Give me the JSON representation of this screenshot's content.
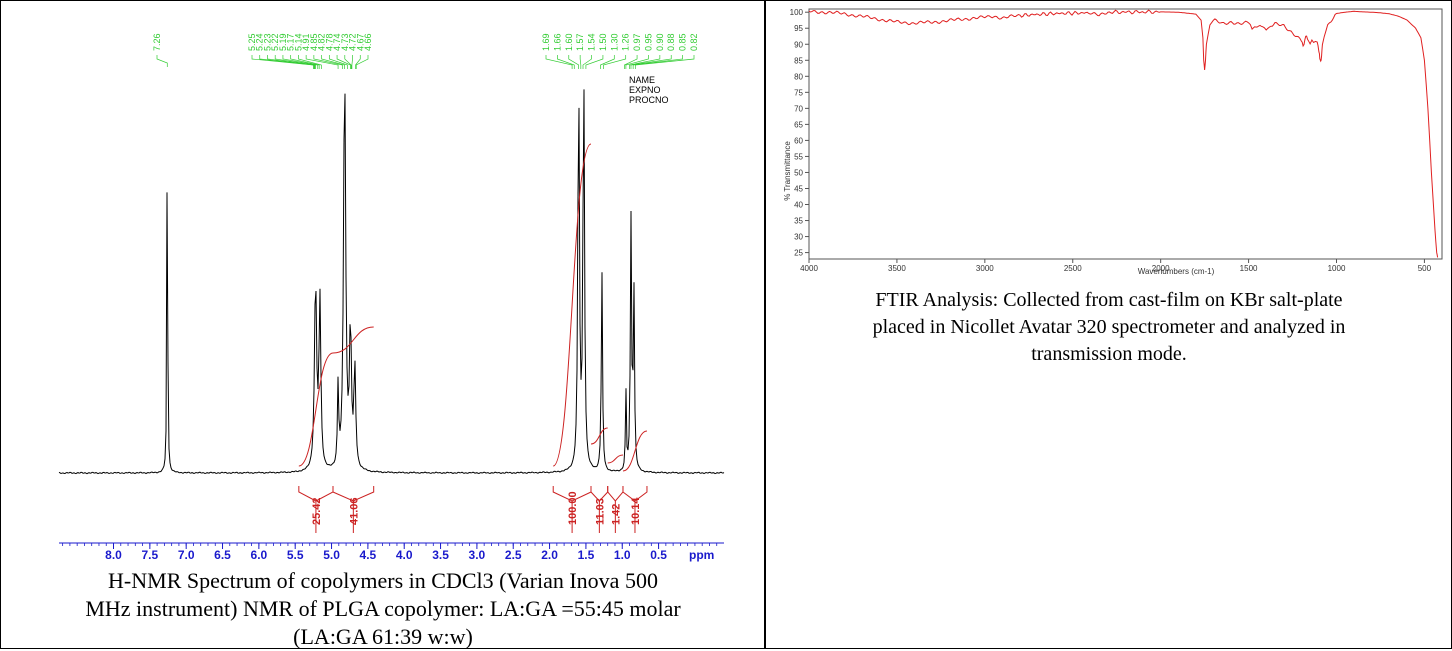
{
  "chart_data": [
    {
      "type": "line",
      "chart": "nmr",
      "xunit": "ppm",
      "xlim": [
        8.75,
        -0.4
      ],
      "ticks": [
        "8.0",
        "7.5",
        "7.0",
        "6.5",
        "6.0",
        "5.5",
        "5.0",
        "4.5",
        "4.0",
        "3.5",
        "3.0",
        "2.5",
        "2.0",
        "1.5",
        "1.0",
        "0.5"
      ],
      "tick_values": [
        8.0,
        7.5,
        7.0,
        6.5,
        6.0,
        5.5,
        5.0,
        4.5,
        4.0,
        3.5,
        3.0,
        2.5,
        2.0,
        1.5,
        1.0,
        0.5
      ],
      "peak_group_1": [
        "7.26"
      ],
      "peak_group_2": [
        "5.25",
        "5.24",
        "5.23",
        "5.22",
        "5.19",
        "5.17",
        "5.14",
        "4.91",
        "4.85",
        "4.82",
        "4.78",
        "4.74",
        "4.73",
        "4.72",
        "4.67",
        "4.66"
      ],
      "peak_group_3": [
        "1.69",
        "1.66",
        "1.60",
        "1.57",
        "1.54",
        "1.50",
        "1.30",
        "1.26",
        "0.97",
        "0.95",
        "0.90",
        "0.88",
        "0.85",
        "0.82"
      ],
      "info_labels": [
        "NAME",
        "EXPNO",
        "PROCNO"
      ],
      "integrals": [
        {
          "label": "25.42",
          "from": 5.45,
          "to": 4.98
        },
        {
          "label": "41.06",
          "from": 4.98,
          "to": 4.42
        },
        {
          "label": "100.00",
          "from": 1.95,
          "to": 1.43
        },
        {
          "label": "11.03",
          "from": 1.43,
          "to": 1.2
        },
        {
          "label": "1.42",
          "from": 1.2,
          "to": 0.99
        },
        {
          "label": "10.14",
          "from": 0.99,
          "to": 0.66
        }
      ],
      "peaks": [
        {
          "ppm": 7.26,
          "height": 1.0,
          "width": 0.012
        },
        {
          "ppm": 5.22,
          "height": 0.47,
          "width": 0.035
        },
        {
          "ppm": 5.16,
          "height": 0.42,
          "width": 0.03
        },
        {
          "ppm": 4.91,
          "height": 0.2,
          "width": 0.02
        },
        {
          "ppm": 4.82,
          "height": 1.0,
          "width": 0.035
        },
        {
          "ppm": 4.74,
          "height": 0.35,
          "width": 0.03
        },
        {
          "ppm": 4.68,
          "height": 0.25,
          "width": 0.03
        },
        {
          "ppm": 1.6,
          "height": 1.0,
          "width": 0.025
        },
        {
          "ppm": 1.53,
          "height": 1.0,
          "width": 0.025
        },
        {
          "ppm": 1.28,
          "height": 0.5,
          "width": 0.02
        },
        {
          "ppm": 0.95,
          "height": 0.2,
          "width": 0.015
        },
        {
          "ppm": 0.88,
          "height": 0.62,
          "width": 0.02
        },
        {
          "ppm": 0.84,
          "height": 0.45,
          "width": 0.02
        }
      ],
      "colors": {
        "spectrum": "#000000",
        "labels": "#33cc33",
        "integrals": "#cc2222",
        "axis": "#1a1acc"
      }
    },
    {
      "type": "line",
      "chart": "ftir",
      "xlabel": "Wavenumbers (cm-1)",
      "ylabel": "% Transmittance",
      "xlim": [
        4000,
        400
      ],
      "ylim": [
        23,
        101
      ],
      "xticks": [
        "4000",
        "3500",
        "3000",
        "2500",
        "2000",
        "1500",
        "1000",
        "500"
      ],
      "xtick_values": [
        4000,
        3500,
        3000,
        2500,
        2000,
        1500,
        1000,
        500
      ],
      "yticks": [
        "25",
        "30",
        "35",
        "40",
        "45",
        "50",
        "55",
        "60",
        "65",
        "70",
        "75",
        "80",
        "85",
        "90",
        "95",
        "100"
      ],
      "ytick_values": [
        25,
        30,
        35,
        40,
        45,
        50,
        55,
        60,
        65,
        70,
        75,
        80,
        85,
        90,
        95,
        100
      ],
      "x": [
        4000,
        3900,
        3800,
        3700,
        3600,
        3500,
        3400,
        3300,
        3200,
        3100,
        3000,
        2950,
        2900,
        2800,
        2600,
        2400,
        2350,
        2300,
        2000,
        1900,
        1800,
        1770,
        1760,
        1755,
        1750,
        1745,
        1740,
        1720,
        1700,
        1650,
        1600,
        1550,
        1500,
        1480,
        1450,
        1420,
        1400,
        1380,
        1350,
        1300,
        1250,
        1200,
        1190,
        1180,
        1170,
        1160,
        1150,
        1130,
        1110,
        1100,
        1095,
        1090,
        1085,
        1080,
        1060,
        1040,
        1000,
        950,
        900,
        850,
        800,
        750,
        700,
        650,
        600,
        550,
        520,
        500,
        480,
        460,
        440,
        430,
        425
      ],
      "y": [
        100.2,
        100.0,
        99.5,
        98.7,
        97.8,
        96.9,
        96.6,
        96.9,
        97.4,
        98.0,
        98.4,
        98.8,
        98.2,
        99.0,
        99.6,
        99.8,
        98.9,
        100.0,
        100.1,
        100.0,
        99.4,
        97.5,
        92.0,
        85.0,
        82.0,
        85.0,
        90.0,
        96.0,
        97.5,
        96.5,
        97.0,
        96.2,
        96.8,
        95.0,
        96.0,
        95.5,
        94.5,
        95.5,
        96.3,
        96.0,
        93.5,
        91.0,
        89.5,
        91.5,
        92.5,
        91.0,
        90.5,
        91.0,
        90.5,
        88.0,
        86.0,
        84.5,
        86.0,
        90.0,
        94.5,
        97.0,
        99.6,
        100.0,
        100.3,
        100.1,
        100.0,
        99.8,
        99.5,
        98.8,
        97.6,
        95.0,
        92.0,
        85.0,
        70.0,
        50.0,
        32.0,
        25.0,
        23.5
      ],
      "colors": {
        "spectrum": "#e02020",
        "axis": "#555555"
      }
    }
  ],
  "captions": {
    "nmr_line1": "H-NMR Spectrum of copolymers in CDCl3 (Varian Inova 500",
    "nmr_line2": "MHz instrument) NMR of PLGA copolymer: LA:GA =55:45 molar",
    "nmr_line3": "(LA:GA 61:39 w:w)",
    "ftir_line1": "FTIR Analysis: Collected from cast-film on KBr salt-plate",
    "ftir_line2": "placed in Nicollet Avatar 320 spectrometer and analyzed in",
    "ftir_line3": "transmission mode."
  }
}
